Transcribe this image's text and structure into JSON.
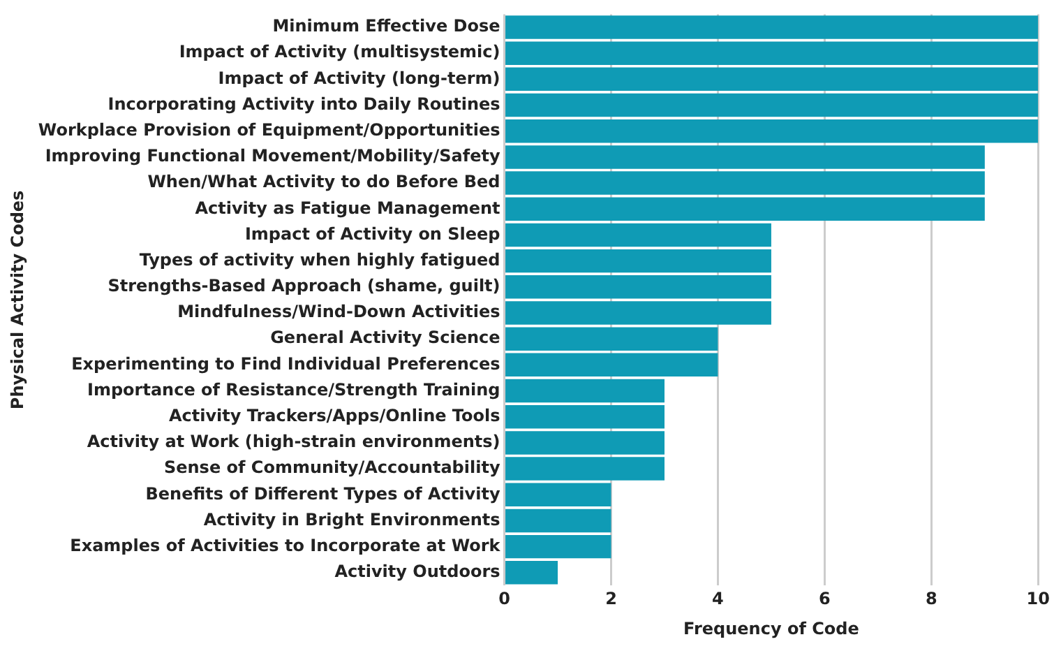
{
  "chart_data": {
    "type": "bar",
    "orientation": "horizontal",
    "xlabel": "Frequency of Code",
    "ylabel": "Physical Activity Codes",
    "categories": [
      "Minimum Effective Dose",
      "Impact of Activity (multisystemic)",
      "Impact of Activity (long-term)",
      "Incorporating Activity into Daily Routines",
      "Workplace Provision of Equipment/Opportunities",
      "Improving Functional Movement/Mobility/Safety",
      "When/What Activity to do Before Bed",
      "Activity as Fatigue Management",
      "Impact of Activity on Sleep",
      "Types of activity when highly fatigued",
      "Strengths-Based Approach (shame, guilt)",
      "Mindfulness/Wind-Down Activities",
      "General Activity Science",
      "Experimenting to Find Individual Preferences",
      "Importance of Resistance/Strength Training",
      "Activity Trackers/Apps/Online Tools",
      "Activity at Work (high-strain environments)",
      "Sense of Community/Accountability",
      "Benefits of Different Types of Activity",
      "Activity in Bright Environments",
      "Examples of Activities to Incorporate at Work",
      "Activity Outdoors"
    ],
    "values": [
      10,
      10,
      10,
      10,
      10,
      9,
      9,
      9,
      5,
      5,
      5,
      5,
      4,
      4,
      3,
      3,
      3,
      3,
      2,
      2,
      2,
      1
    ],
    "color": "#0f9bb5",
    "xlim": [
      0,
      10
    ],
    "xticks": [
      0,
      2,
      4,
      6,
      8,
      10
    ],
    "grid": "x",
    "legend": false
  }
}
